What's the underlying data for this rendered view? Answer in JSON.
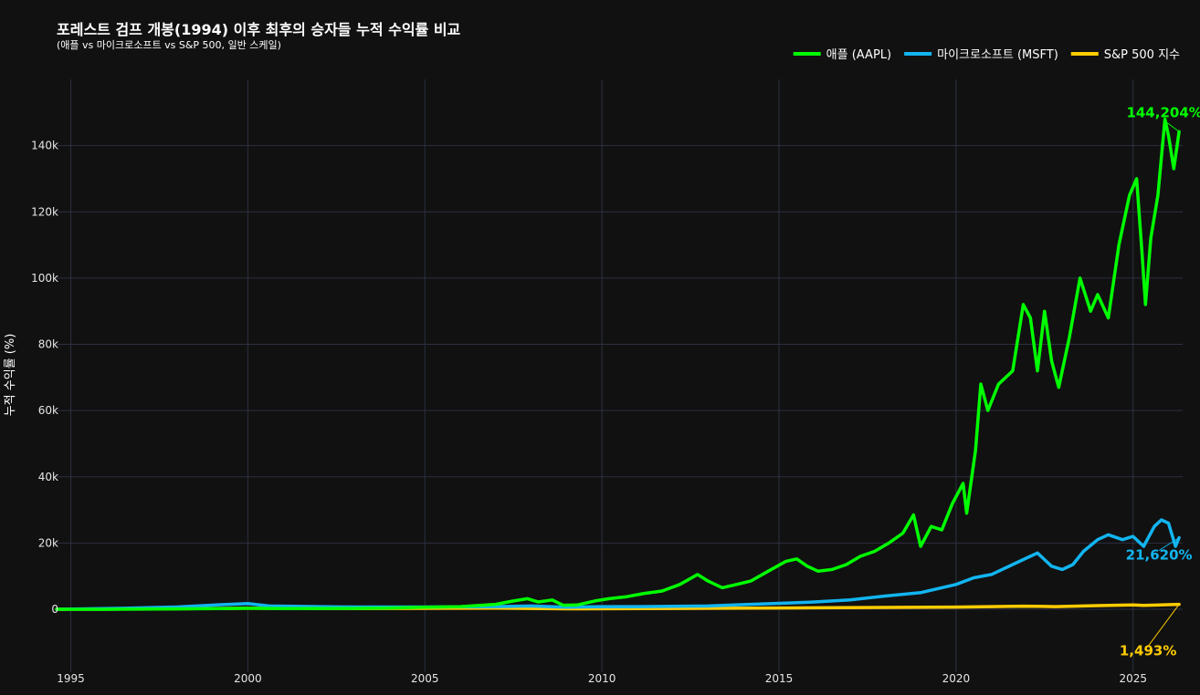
{
  "chart_data": {
    "type": "line",
    "title": "포레스트 검프 개봉(1994) 이후 최후의 승자들 누적 수익률 비교",
    "subtitle": "(애플 vs 마이크로소프트 vs S&P 500, 일반 스케일)",
    "xlabel": "",
    "ylabel": "누적 수익률 (%)",
    "xlim": [
      1994.6,
      2026.4
    ],
    "ylim": [
      -19000,
      160000
    ],
    "xticks": [
      {
        "value": 1995,
        "label": "1995"
      },
      {
        "value": 2000,
        "label": "2000"
      },
      {
        "value": 2005,
        "label": "2005"
      },
      {
        "value": 2010,
        "label": "2010"
      },
      {
        "value": 2015,
        "label": "2015"
      },
      {
        "value": 2020,
        "label": "2020"
      },
      {
        "value": 2025,
        "label": "2025"
      }
    ],
    "yticks": [
      {
        "value": 0,
        "label": "0"
      },
      {
        "value": 20000,
        "label": "20k"
      },
      {
        "value": 40000,
        "label": "40k"
      },
      {
        "value": 60000,
        "label": "60k"
      },
      {
        "value": 80000,
        "label": "80k"
      },
      {
        "value": 100000,
        "label": "100k"
      },
      {
        "value": 120000,
        "label": "120k"
      },
      {
        "value": 140000,
        "label": "140k"
      }
    ],
    "grid": true,
    "legend_position": "top-right",
    "series": [
      {
        "name": "애플 (AAPL)",
        "color": "#00ff00",
        "points": [
          [
            1994.6,
            0
          ],
          [
            1996.0,
            -20
          ],
          [
            1998.0,
            100
          ],
          [
            1999.5,
            250
          ],
          [
            2000.0,
            300
          ],
          [
            2001.0,
            200
          ],
          [
            2003.0,
            250
          ],
          [
            2004.0,
            400
          ],
          [
            2005.0,
            600
          ],
          [
            2006.0,
            800
          ],
          [
            2007.0,
            1500
          ],
          [
            2007.5,
            2500
          ],
          [
            2007.9,
            3200
          ],
          [
            2008.2,
            2200
          ],
          [
            2008.6,
            2800
          ],
          [
            2008.9,
            1200
          ],
          [
            2009.3,
            1300
          ],
          [
            2009.8,
            2500
          ],
          [
            2010.2,
            3200
          ],
          [
            2010.7,
            3800
          ],
          [
            2011.2,
            4800
          ],
          [
            2011.7,
            5500
          ],
          [
            2012.2,
            7500
          ],
          [
            2012.7,
            10500
          ],
          [
            2013.0,
            8500
          ],
          [
            2013.4,
            6500
          ],
          [
            2013.8,
            7500
          ],
          [
            2014.2,
            8500
          ],
          [
            2014.7,
            11500
          ],
          [
            2015.2,
            14500
          ],
          [
            2015.5,
            15200
          ],
          [
            2015.8,
            13000
          ],
          [
            2016.1,
            11500
          ],
          [
            2016.5,
            12000
          ],
          [
            2016.9,
            13500
          ],
          [
            2017.3,
            16000
          ],
          [
            2017.7,
            17500
          ],
          [
            2018.1,
            20000
          ],
          [
            2018.5,
            23000
          ],
          [
            2018.8,
            28500
          ],
          [
            2019.0,
            19000
          ],
          [
            2019.3,
            25000
          ],
          [
            2019.6,
            24000
          ],
          [
            2019.9,
            32000
          ],
          [
            2020.2,
            38000
          ],
          [
            2020.3,
            29000
          ],
          [
            2020.55,
            48000
          ],
          [
            2020.7,
            68000
          ],
          [
            2020.9,
            60000
          ],
          [
            2021.2,
            68000
          ],
          [
            2021.6,
            72000
          ],
          [
            2021.9,
            92000
          ],
          [
            2022.1,
            88000
          ],
          [
            2022.3,
            72000
          ],
          [
            2022.5,
            90000
          ],
          [
            2022.7,
            75000
          ],
          [
            2022.9,
            67000
          ],
          [
            2023.2,
            82000
          ],
          [
            2023.5,
            100000
          ],
          [
            2023.8,
            90000
          ],
          [
            2024.0,
            95000
          ],
          [
            2024.3,
            88000
          ],
          [
            2024.6,
            110000
          ],
          [
            2024.9,
            125000
          ],
          [
            2025.1,
            130000
          ],
          [
            2025.25,
            108000
          ],
          [
            2025.35,
            92000
          ],
          [
            2025.5,
            112000
          ],
          [
            2025.7,
            125000
          ],
          [
            2025.9,
            148000
          ],
          [
            2026.0,
            143000
          ],
          [
            2026.15,
            133000
          ],
          [
            2026.3,
            144204
          ]
        ]
      },
      {
        "name": "마이크로소프트 (MSFT)",
        "color": "#12b5f0",
        "points": [
          [
            1994.6,
            0
          ],
          [
            1996.5,
            300
          ],
          [
            1998.0,
            700
          ],
          [
            1999.3,
            1400
          ],
          [
            2000.0,
            1700
          ],
          [
            2000.6,
            1000
          ],
          [
            2002.0,
            800
          ],
          [
            2003.0,
            700
          ],
          [
            2005.0,
            700
          ],
          [
            2007.0,
            800
          ],
          [
            2008.0,
            1000
          ],
          [
            2009.0,
            600
          ],
          [
            2010.0,
            800
          ],
          [
            2011.0,
            800
          ],
          [
            2012.0,
            900
          ],
          [
            2013.0,
            1000
          ],
          [
            2014.0,
            1400
          ],
          [
            2015.0,
            1800
          ],
          [
            2016.0,
            2200
          ],
          [
            2017.0,
            2800
          ],
          [
            2018.0,
            4000
          ],
          [
            2019.0,
            5000
          ],
          [
            2020.0,
            7500
          ],
          [
            2020.5,
            9500
          ],
          [
            2021.0,
            10500
          ],
          [
            2021.9,
            15000
          ],
          [
            2022.3,
            17000
          ],
          [
            2022.7,
            13000
          ],
          [
            2023.0,
            12000
          ],
          [
            2023.3,
            13500
          ],
          [
            2023.6,
            17500
          ],
          [
            2024.0,
            21000
          ],
          [
            2024.3,
            22500
          ],
          [
            2024.7,
            21000
          ],
          [
            2025.0,
            22000
          ],
          [
            2025.3,
            19000
          ],
          [
            2025.6,
            25000
          ],
          [
            2025.8,
            27000
          ],
          [
            2026.0,
            26000
          ],
          [
            2026.2,
            19000
          ],
          [
            2026.3,
            21620
          ]
        ]
      },
      {
        "name": "S&P 500 지수",
        "color": "#ffcc00",
        "points": [
          [
            1994.6,
            0
          ],
          [
            1997.0,
            100
          ],
          [
            2000.0,
            300
          ],
          [
            2003.0,
            200
          ],
          [
            2007.0,
            350
          ],
          [
            2009.0,
            150
          ],
          [
            2012.0,
            250
          ],
          [
            2015.0,
            400
          ],
          [
            2018.0,
            550
          ],
          [
            2020.0,
            650
          ],
          [
            2021.9,
            950
          ],
          [
            2022.8,
            800
          ],
          [
            2024.0,
            1100
          ],
          [
            2025.0,
            1300
          ],
          [
            2025.3,
            1150
          ],
          [
            2026.3,
            1493
          ]
        ]
      }
    ],
    "annotations": [
      {
        "text": "144,204%",
        "x": 2026.3,
        "y": 144204,
        "color": "#00ff00"
      },
      {
        "text": "21,620%",
        "x": 2026.3,
        "y": 21620,
        "color": "#12b5f0"
      },
      {
        "text": "1,493%",
        "x": 2026.3,
        "y": 1493,
        "color": "#ffcc00"
      }
    ]
  }
}
